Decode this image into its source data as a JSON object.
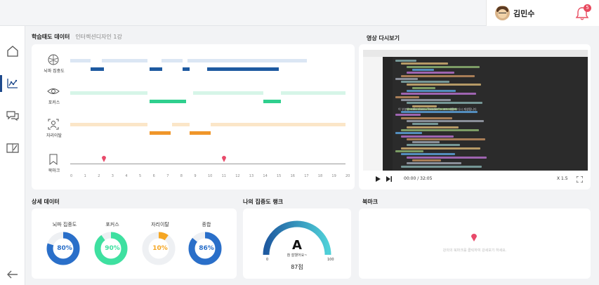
{
  "header": {
    "user_name": "김민수",
    "notification_count": "5"
  },
  "sidebar": {
    "items": [
      "home-icon",
      "analytics-icon",
      "chat-icon",
      "notebook-icon"
    ],
    "back": "back-arrow-icon"
  },
  "attitude": {
    "title": "학습태도 데이터",
    "subtitle": "인터렉션디자인 1강",
    "rows": [
      {
        "label": "뇌파 집중도",
        "icon": "brain-icon",
        "color": "#1e5aa0"
      },
      {
        "label": "포커스",
        "icon": "eye-icon",
        "color": "#2fcf8e"
      },
      {
        "label": "자리이탈",
        "icon": "away-icon",
        "color": "#f0962a"
      },
      {
        "label": "북마크",
        "icon": "bookmark-icon",
        "color": "#e84a6a"
      }
    ],
    "ticks": [
      "0",
      "1",
      "2",
      "3",
      "4",
      "5",
      "6",
      "7",
      "8",
      "9",
      "10",
      "11",
      "12",
      "13",
      "14",
      "15",
      "16",
      "17",
      "18",
      "19",
      "20"
    ]
  },
  "video": {
    "title": "영상 다시보기",
    "caption": "이 부분은 <div class=\"header\"> 코드 내용이 다시 재생됩니다",
    "time": "00:00 / 32:05",
    "speed": "X 1.5"
  },
  "detail": {
    "title": "상세 데이터",
    "items": [
      {
        "label": "뇌파 집중도",
        "value": "80%",
        "percent": 80,
        "color": "#2a6fc9"
      },
      {
        "label": "포커스",
        "value": "90%",
        "percent": 90,
        "color": "#3ee0a0"
      },
      {
        "label": "자리이탈",
        "value": "10%",
        "percent": 10,
        "color": "#f5a623"
      },
      {
        "label": "종합",
        "value": "86%",
        "percent": 86,
        "color": "#2a6fc9"
      }
    ]
  },
  "rank": {
    "title": "나의 집중도 랭크",
    "grade": "A",
    "grade_sub": "참 잘했어요~",
    "min": "0",
    "max": "100",
    "score": "87점"
  },
  "bookmark": {
    "title": "북마크",
    "empty_text": "강의의 북마크를 클릭하여 강세보기 하세요."
  }
}
